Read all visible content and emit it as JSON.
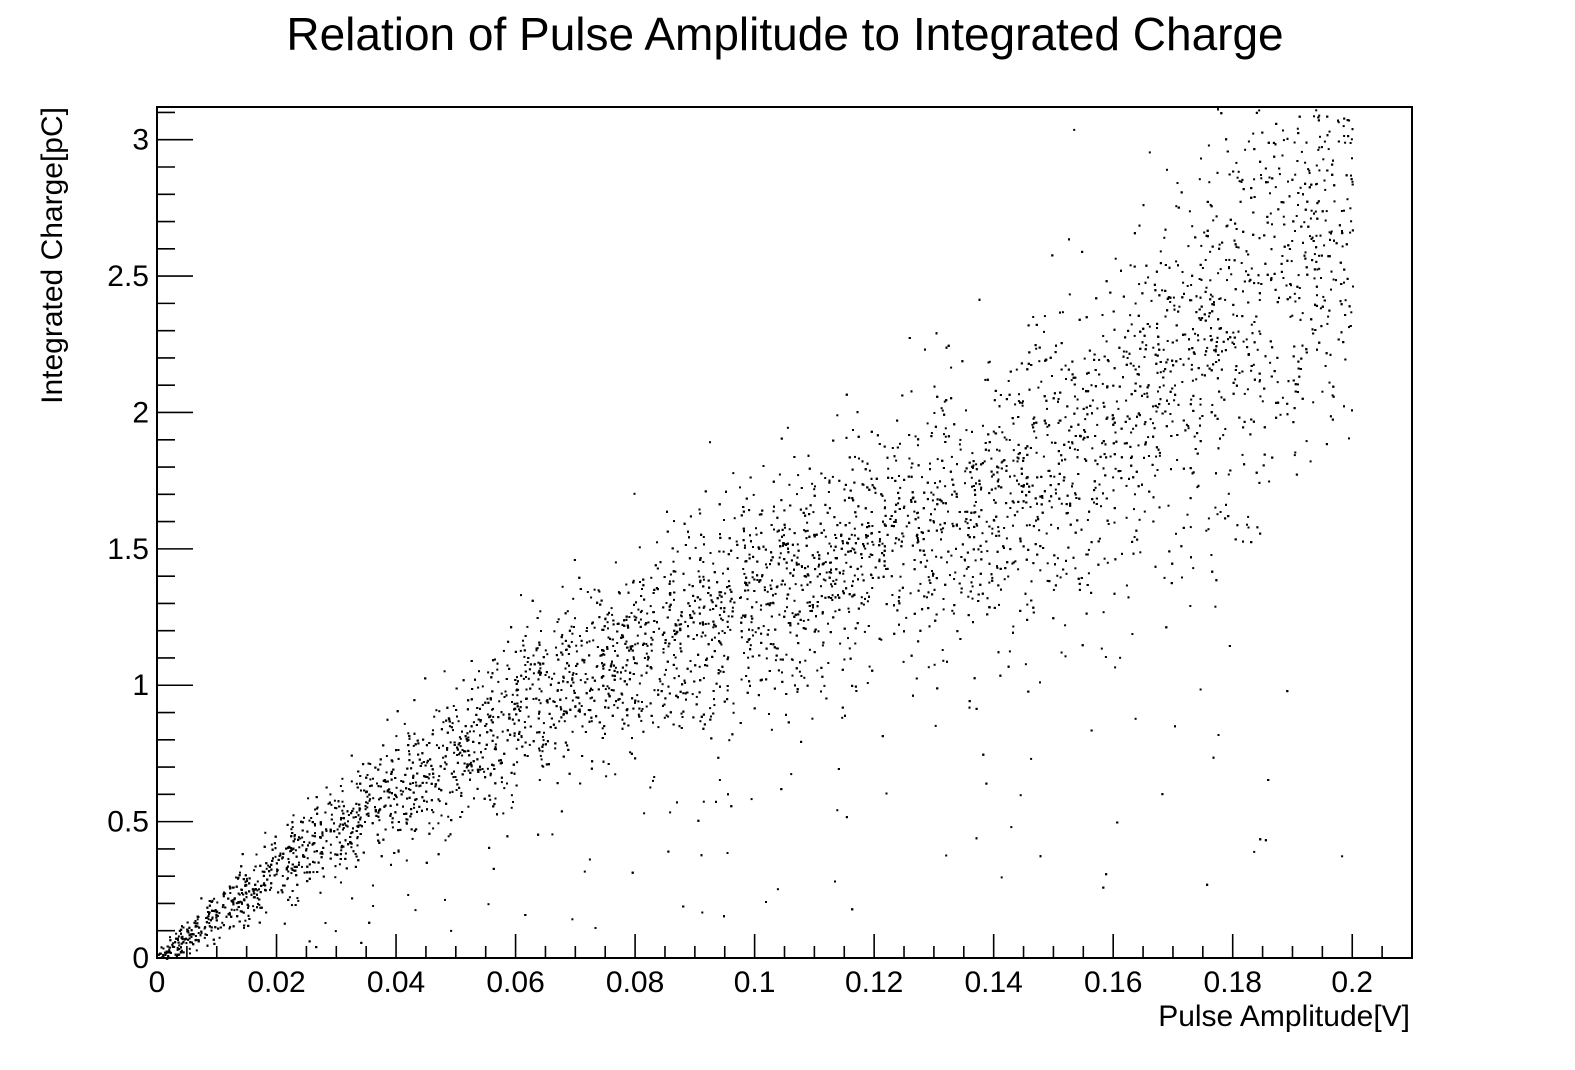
{
  "chart_data": {
    "type": "scatter",
    "title": "Relation of Pulse Amplitude to Integrated Charge",
    "xlabel": "Pulse Amplitude[V]",
    "ylabel": "Integrated Charge[pC]",
    "xlim": [
      0,
      0.21
    ],
    "ylim": [
      0,
      3.12
    ],
    "x_ticks": [
      0,
      0.02,
      0.04,
      0.06,
      0.08,
      0.1,
      0.12,
      0.14,
      0.16,
      0.18,
      0.2
    ],
    "x_tick_labels": [
      "0",
      "0.02",
      "0.04",
      "0.06",
      "0.08",
      "0.1",
      "0.12",
      "0.14",
      "0.16",
      "0.18",
      "0.2"
    ],
    "y_ticks": [
      0,
      0.5,
      1,
      1.5,
      2,
      2.5,
      3
    ],
    "y_tick_labels": [
      "0",
      "0.5",
      "1",
      "1.5",
      "2",
      "2.5",
      "3"
    ],
    "grid": false,
    "legend": "none",
    "marker_color": "#000000",
    "series": [
      {
        "values_description": "dense point cloud",
        "core_trend": [
          [
            0.0,
            0.0
          ],
          [
            0.02,
            0.33
          ],
          [
            0.04,
            0.62
          ],
          [
            0.06,
            0.9
          ],
          [
            0.08,
            1.12
          ],
          [
            0.1,
            1.32
          ],
          [
            0.12,
            1.5
          ],
          [
            0.14,
            1.68
          ],
          [
            0.16,
            1.95
          ],
          [
            0.18,
            2.35
          ],
          [
            0.2,
            2.8
          ]
        ],
        "band_halfwidth": [
          [
            0.0,
            0.03
          ],
          [
            0.02,
            0.12
          ],
          [
            0.04,
            0.2
          ],
          [
            0.06,
            0.26
          ],
          [
            0.08,
            0.3
          ],
          [
            0.1,
            0.34
          ],
          [
            0.12,
            0.38
          ],
          [
            0.14,
            0.45
          ],
          [
            0.16,
            0.55
          ],
          [
            0.18,
            0.65
          ],
          [
            0.2,
            0.7
          ]
        ],
        "x_max": 0.2
      }
    ]
  }
}
